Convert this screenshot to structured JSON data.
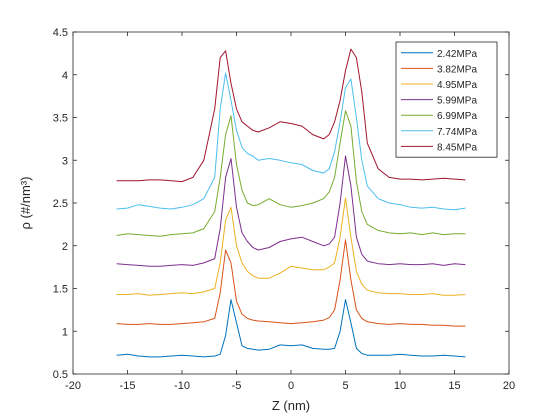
{
  "chart_data": {
    "type": "line",
    "title": "",
    "xlabel": "Z (nm)",
    "ylabel": "ρ (#/nm³)",
    "xlim": [
      -20,
      20
    ],
    "ylim": [
      0.5,
      4.5
    ],
    "xticks": [
      -20,
      -15,
      -10,
      -5,
      0,
      5,
      10,
      15,
      20
    ],
    "yticks": [
      0.5,
      1,
      1.5,
      2,
      2.5,
      3,
      3.5,
      4,
      4.5
    ],
    "grid": false,
    "legend_position": "top-right",
    "x": [
      -16,
      -15,
      -14,
      -13,
      -12,
      -11,
      -10,
      -9,
      -8,
      -7,
      -6.5,
      -6,
      -5.5,
      -5,
      -4.5,
      -4,
      -3.5,
      -3,
      -2,
      -1,
      0,
      1,
      2,
      3,
      3.5,
      4,
      4.5,
      5,
      5.5,
      6,
      6.5,
      7,
      8,
      9,
      10,
      11,
      12,
      13,
      14,
      15,
      16
    ],
    "series": [
      {
        "name": "2.42MPa",
        "color": "#0072BD",
        "values": [
          0.72,
          0.73,
          0.71,
          0.7,
          0.7,
          0.71,
          0.72,
          0.71,
          0.7,
          0.71,
          0.73,
          0.95,
          1.37,
          1.1,
          0.83,
          0.8,
          0.79,
          0.78,
          0.79,
          0.84,
          0.83,
          0.84,
          0.8,
          0.79,
          0.79,
          0.8,
          1.0,
          1.37,
          1.1,
          0.8,
          0.74,
          0.72,
          0.72,
          0.72,
          0.73,
          0.72,
          0.71,
          0.71,
          0.72,
          0.71,
          0.7
        ]
      },
      {
        "name": "3.82MPa",
        "color": "#D95319",
        "values": [
          1.09,
          1.08,
          1.08,
          1.09,
          1.08,
          1.08,
          1.09,
          1.1,
          1.11,
          1.15,
          1.45,
          1.95,
          1.8,
          1.35,
          1.2,
          1.15,
          1.13,
          1.12,
          1.11,
          1.1,
          1.09,
          1.1,
          1.11,
          1.13,
          1.16,
          1.25,
          1.6,
          2.07,
          1.6,
          1.25,
          1.15,
          1.11,
          1.09,
          1.08,
          1.09,
          1.08,
          1.08,
          1.07,
          1.07,
          1.06,
          1.06
        ]
      },
      {
        "name": "4.95MPa",
        "color": "#EDB120",
        "values": [
          1.43,
          1.43,
          1.44,
          1.42,
          1.43,
          1.44,
          1.45,
          1.44,
          1.46,
          1.5,
          1.8,
          2.3,
          2.45,
          2.0,
          1.8,
          1.7,
          1.65,
          1.62,
          1.62,
          1.68,
          1.76,
          1.74,
          1.72,
          1.72,
          1.75,
          1.8,
          2.1,
          2.56,
          2.1,
          1.7,
          1.55,
          1.48,
          1.45,
          1.44,
          1.44,
          1.43,
          1.43,
          1.44,
          1.42,
          1.42,
          1.43
        ]
      },
      {
        "name": "5.99MPa",
        "color": "#7E2F8E",
        "values": [
          1.79,
          1.78,
          1.77,
          1.76,
          1.76,
          1.77,
          1.78,
          1.77,
          1.8,
          1.85,
          2.2,
          2.8,
          3.02,
          2.45,
          2.15,
          2.05,
          1.98,
          1.95,
          1.98,
          2.05,
          2.08,
          2.1,
          2.05,
          2.0,
          2.02,
          2.1,
          2.5,
          3.05,
          2.7,
          2.1,
          1.9,
          1.82,
          1.79,
          1.78,
          1.79,
          1.78,
          1.78,
          1.79,
          1.77,
          1.79,
          1.78
        ]
      },
      {
        "name": "6.99MPa",
        "color": "#77AC30",
        "values": [
          2.12,
          2.14,
          2.13,
          2.12,
          2.11,
          2.13,
          2.14,
          2.15,
          2.2,
          2.4,
          2.8,
          3.3,
          3.52,
          2.95,
          2.65,
          2.5,
          2.47,
          2.48,
          2.55,
          2.48,
          2.45,
          2.47,
          2.5,
          2.55,
          2.63,
          2.8,
          3.2,
          3.58,
          3.4,
          2.75,
          2.4,
          2.25,
          2.18,
          2.15,
          2.14,
          2.15,
          2.13,
          2.15,
          2.13,
          2.14,
          2.14
        ]
      },
      {
        "name": "7.74MPa",
        "color": "#4DBEEE",
        "values": [
          2.43,
          2.44,
          2.48,
          2.46,
          2.44,
          2.43,
          2.45,
          2.48,
          2.55,
          2.8,
          3.6,
          4.02,
          3.7,
          3.35,
          3.15,
          3.08,
          3.05,
          3.0,
          3.02,
          3.0,
          2.97,
          2.95,
          2.88,
          2.85,
          2.9,
          3.1,
          3.45,
          3.85,
          3.95,
          3.5,
          3.0,
          2.7,
          2.55,
          2.5,
          2.48,
          2.45,
          2.44,
          2.45,
          2.43,
          2.42,
          2.44
        ]
      },
      {
        "name": "8.45MPa",
        "color": "#A2142F",
        "values": [
          2.76,
          2.76,
          2.76,
          2.77,
          2.77,
          2.76,
          2.75,
          2.8,
          3.0,
          3.6,
          4.2,
          4.28,
          3.9,
          3.6,
          3.45,
          3.4,
          3.35,
          3.33,
          3.38,
          3.45,
          3.43,
          3.4,
          3.3,
          3.25,
          3.3,
          3.45,
          3.7,
          4.05,
          4.3,
          4.2,
          3.8,
          3.2,
          2.9,
          2.8,
          2.78,
          2.78,
          2.77,
          2.78,
          2.79,
          2.78,
          2.77
        ]
      }
    ]
  }
}
